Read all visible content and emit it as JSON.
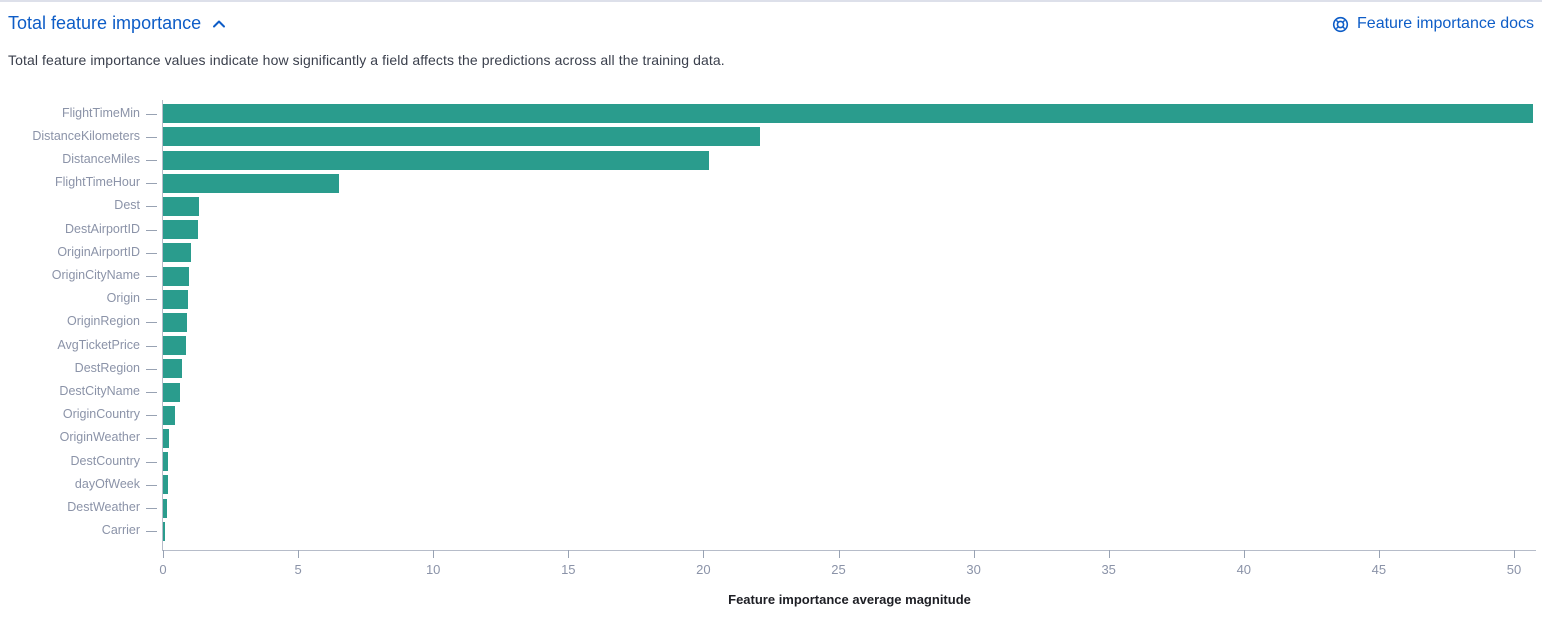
{
  "panel": {
    "title": "Total feature importance",
    "collapse_icon": "chevron-up-icon",
    "docs_link_label": "Feature importance docs",
    "docs_link_icon": "help-lifering-icon",
    "description": "Total feature importance values indicate how significantly a field affects the predictions across all the training data."
  },
  "colors": {
    "bar_teal": "#2a9c8d",
    "link_blue": "#0e5dc7",
    "axis_label_gray": "#8b93a8",
    "axis_line_gray": "#b6bcc9",
    "tick_gray": "#98a2b3",
    "text_dark": "#343741",
    "axis_title_black": "#1d1e24",
    "top_border": "#dde0ea"
  },
  "chart_data": {
    "type": "bar",
    "orientation": "horizontal",
    "xlabel": "Feature importance average magnitude",
    "categories": [
      "FlightTimeMin",
      "DistanceKilometers",
      "DistanceMiles",
      "FlightTimeHour",
      "Dest",
      "DestAirportID",
      "OriginAirportID",
      "OriginCityName",
      "Origin",
      "OriginRegion",
      "AvgTicketPrice",
      "DestRegion",
      "DestCityName",
      "OriginCountry",
      "OriginWeather",
      "DestCountry",
      "dayOfWeek",
      "DestWeather",
      "Carrier"
    ],
    "values": [
      50.7,
      22.1,
      20.2,
      6.5,
      1.35,
      1.3,
      1.05,
      0.95,
      0.93,
      0.88,
      0.85,
      0.7,
      0.62,
      0.43,
      0.21,
      0.2,
      0.18,
      0.14,
      0.06
    ],
    "xticks": [
      0,
      5,
      10,
      15,
      20,
      25,
      30,
      35,
      40,
      45,
      50
    ],
    "xlim": [
      0,
      50.8
    ],
    "grid": false,
    "legend": false
  }
}
